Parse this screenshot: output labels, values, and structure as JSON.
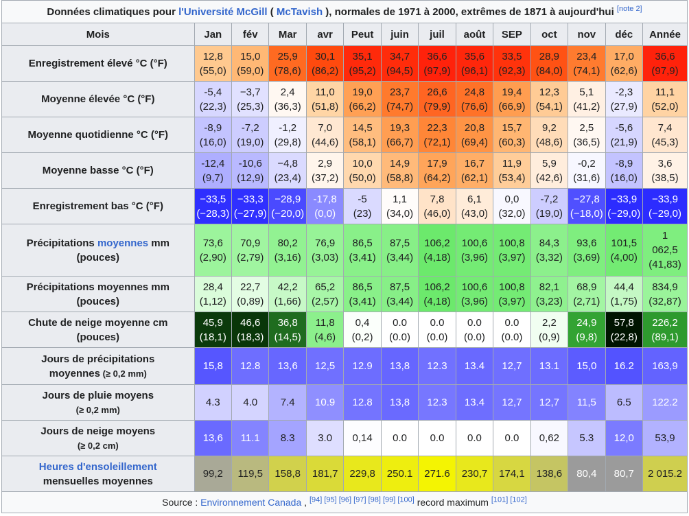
{
  "caption": {
    "prefix": "Données climatiques pour ",
    "link1": "l'Université McGill",
    "paren_open": " ( ",
    "link2": "McTavish",
    "suffix": " ), normales de 1971 à 2000, extrêmes de 1871 à aujourd'hui",
    "note": "[note 2]"
  },
  "header": {
    "mois": "Mois",
    "months": [
      "Jan",
      "fév",
      "Mar",
      "avr",
      "Peut",
      "juin",
      "juil",
      "août",
      "SEP",
      "oct",
      "nov",
      "déc",
      "Année"
    ]
  },
  "rows": [
    {
      "label": "Enregistrement élevé °C (°F)",
      "cells": [
        {
          "c": "12,8",
          "f": "(55,0)",
          "bg": "#ffc98f"
        },
        {
          "c": "15,0",
          "f": "(59,0)",
          "bg": "#ffb875"
        },
        {
          "c": "25,9",
          "f": "(78,6)",
          "bg": "#ff6a21"
        },
        {
          "c": "30,1",
          "f": "(86,2)",
          "bg": "#ff4a0e"
        },
        {
          "c": "35,1",
          "f": "(95,2)",
          "bg": "#ff2a0b"
        },
        {
          "c": "34,7",
          "f": "(94,5)",
          "bg": "#ff2c0b"
        },
        {
          "c": "36,6",
          "f": "(97,9)",
          "bg": "#ff220b"
        },
        {
          "c": "35,6",
          "f": "(96,1)",
          "bg": "#ff270b"
        },
        {
          "c": "33,5",
          "f": "(92,3)",
          "bg": "#ff330c"
        },
        {
          "c": "28,9",
          "f": "(84,0)",
          "bg": "#ff5214"
        },
        {
          "c": "23,4",
          "f": "(74,1)",
          "bg": "#ff7b2f"
        },
        {
          "c": "17,0",
          "f": "(62,6)",
          "bg": "#ffac64"
        },
        {
          "c": "36,6",
          "f": "(97,9)",
          "bg": "#ff220b"
        }
      ]
    },
    {
      "label": "Moyenne élevée °C (°F)",
      "cells": [
        {
          "c": "-5,4",
          "f": "(22,3)",
          "bg": "#d7d7ff"
        },
        {
          "c": "−3,7",
          "f": "(25,3)",
          "bg": "#e1e1ff"
        },
        {
          "c": "2,4",
          "f": "(36,3)",
          "bg": "#fff8f2"
        },
        {
          "c": "11,0",
          "f": "(51,8)",
          "bg": "#ffd5a5"
        },
        {
          "c": "19,0",
          "f": "(66,2)",
          "bg": "#ffa054"
        },
        {
          "c": "23,7",
          "f": "(74,7)",
          "bg": "#ff7a2d"
        },
        {
          "c": "26,6",
          "f": "(79,9)",
          "bg": "#ff6522"
        },
        {
          "c": "24,8",
          "f": "(76,6)",
          "bg": "#ff7228"
        },
        {
          "c": "19,4",
          "f": "(66,9)",
          "bg": "#ff9d50"
        },
        {
          "c": "12,3",
          "f": "(54,1)",
          "bg": "#ffcb95"
        },
        {
          "c": "5,1",
          "f": "(41,2)",
          "bg": "#fff0e3"
        },
        {
          "c": "-2,3",
          "f": "(27,9)",
          "bg": "#eaeaff"
        },
        {
          "c": "11,1",
          "f": "(52,0)",
          "bg": "#ffd3a3"
        }
      ]
    },
    {
      "label": "Moyenne quotidienne °C (°F)",
      "cells": [
        {
          "c": "-8,9",
          "f": "(16,0)",
          "bg": "#c3c3ff"
        },
        {
          "c": "-7,2",
          "f": "(19,0)",
          "bg": "#cdcdff"
        },
        {
          "c": "-1,2",
          "f": "(29,8)",
          "bg": "#f0f0ff"
        },
        {
          "c": "7,0",
          "f": "(44,6)",
          "bg": "#ffe8d2"
        },
        {
          "c": "14,5",
          "f": "(58,1)",
          "bg": "#ffbd7f"
        },
        {
          "c": "19,3",
          "f": "(66,7)",
          "bg": "#ff9e52"
        },
        {
          "c": "22,3",
          "f": "(72,1)",
          "bg": "#ff8637"
        },
        {
          "c": "20,8",
          "f": "(69,4)",
          "bg": "#ff9445"
        },
        {
          "c": "15,7",
          "f": "(60,3)",
          "bg": "#ffb672"
        },
        {
          "c": "9,2",
          "f": "(48,6)",
          "bg": "#ffdcb8"
        },
        {
          "c": "2,5",
          "f": "(36,5)",
          "bg": "#fff8f2"
        },
        {
          "c": "-5,6",
          "f": "(21,9)",
          "bg": "#d6d6ff"
        },
        {
          "c": "7,4",
          "f": "(45,3)",
          "bg": "#ffe6cf"
        }
      ]
    },
    {
      "label": "Moyenne basse °C (°F)",
      "cells": [
        {
          "c": "-12,4",
          "f": "(9,7)",
          "bg": "#aeaeff"
        },
        {
          "c": "-10,6",
          "f": "(12,9)",
          "bg": "#b9b9ff"
        },
        {
          "c": "−4,8",
          "f": "(23,4)",
          "bg": "#dadaff"
        },
        {
          "c": "2,9",
          "f": "(37,2)",
          "bg": "#fff5ec"
        },
        {
          "c": "10,0",
          "f": "(50,0)",
          "bg": "#ffd8ae"
        },
        {
          "c": "14,9",
          "f": "(58,8)",
          "bg": "#ffba7a"
        },
        {
          "c": "17,9",
          "f": "(64,2)",
          "bg": "#ffa55a"
        },
        {
          "c": "16,7",
          "f": "(62,1)",
          "bg": "#ffae67"
        },
        {
          "c": "11,9",
          "f": "(53,4)",
          "bg": "#ffcd99"
        },
        {
          "c": "5,9",
          "f": "(42,6)",
          "bg": "#ffeddc"
        },
        {
          "c": "-0,2",
          "f": "(31,6)",
          "bg": "#f7f7ff"
        },
        {
          "c": "-8,9",
          "f": "(16,0)",
          "bg": "#c3c3ff"
        },
        {
          "c": "3,6",
          "f": "(38,5)",
          "bg": "#fff2e6"
        }
      ]
    },
    {
      "label": "Enregistrement bas °C (°F)",
      "cells": [
        {
          "c": "−33,5",
          "f": "(−28,3)",
          "bg": "#2f2fff",
          "dark": true
        },
        {
          "c": "−33,3",
          "f": "(−27,9)",
          "bg": "#3030ff",
          "dark": true
        },
        {
          "c": "−28,9",
          "f": "(−20,0)",
          "bg": "#4a4aff",
          "dark": true
        },
        {
          "c": "-17,8",
          "f": "(0,0)",
          "bg": "#8a8aff",
          "dark": true
        },
        {
          "c": "-5",
          "f": "(23)",
          "bg": "#dadaff"
        },
        {
          "c": "1,1",
          "f": "(34,0)",
          "bg": "#fffcfa"
        },
        {
          "c": "7,8",
          "f": "(46,0)",
          "bg": "#ffe3c8"
        },
        {
          "c": "6,1",
          "f": "(43,0)",
          "bg": "#ffecd9"
        },
        {
          "c": "0,0",
          "f": "(32,0)",
          "bg": "#f8f8ff"
        },
        {
          "c": "-7,2",
          "f": "(19,0)",
          "bg": "#cdcdff"
        },
        {
          "c": "−27,8",
          "f": "(−18,0)",
          "bg": "#5050ff",
          "dark": true
        },
        {
          "c": "−33,9",
          "f": "(−29,0)",
          "bg": "#2c2cff",
          "dark": true
        },
        {
          "c": "−33,9",
          "f": "(−29,0)",
          "bg": "#2c2cff",
          "dark": true
        }
      ]
    }
  ],
  "precip_rows": [
    {
      "label_a": "Précipitations ",
      "label_link": "moyennes",
      "label_b": " mm",
      "label_c": "(pouces)",
      "cells": [
        {
          "v": "73,6",
          "i": "(2,90)",
          "bg": "#9cf49c"
        },
        {
          "v": "70,9",
          "i": "(2,79)",
          "bg": "#a0f5a0"
        },
        {
          "v": "80,2",
          "i": "(3,16)",
          "bg": "#92f292"
        },
        {
          "v": "76,9",
          "i": "(3,03)",
          "bg": "#97f397"
        },
        {
          "v": "86,5",
          "i": "(3,41)",
          "bg": "#89f089"
        },
        {
          "v": "87,5",
          "i": "(3,44)",
          "bg": "#87ef87"
        },
        {
          "v": "106,2",
          "i": "(4,18)",
          "bg": "#6ce96c"
        },
        {
          "v": "100,6",
          "i": "(3,96)",
          "bg": "#74eb74"
        },
        {
          "v": "100,8",
          "i": "(3,97)",
          "bg": "#74eb74"
        },
        {
          "v": "84,3",
          "i": "(3,32)",
          "bg": "#8cf08c"
        },
        {
          "v": "93,6",
          "i": "(3,69)",
          "bg": "#7fee7f"
        },
        {
          "v": "101,5",
          "i": "(4,00)",
          "bg": "#73eb73"
        },
        {
          "v": "1\n062,5",
          "i": "(41,83)",
          "bg": "#7fee7f",
          "multi": true
        }
      ]
    },
    {
      "label_a": "Précipitations moyennes mm",
      "label_c": "(pouces)",
      "cells": [
        {
          "v": "28,4",
          "i": "(1,12)",
          "bg": "#dafcda"
        },
        {
          "v": "22,7",
          "i": "(0,89)",
          "bg": "#e3fde3"
        },
        {
          "v": "42,2",
          "i": "(1,66)",
          "bg": "#c7f9c7"
        },
        {
          "v": "65,2",
          "i": "(2,57)",
          "bg": "#a8f6a8"
        },
        {
          "v": "86,5",
          "i": "(3,41)",
          "bg": "#89f089"
        },
        {
          "v": "87,5",
          "i": "(3,44)",
          "bg": "#87ef87"
        },
        {
          "v": "106,2",
          "i": "(4,18)",
          "bg": "#6ce96c"
        },
        {
          "v": "100,6",
          "i": "(3,96)",
          "bg": "#74eb74"
        },
        {
          "v": "100,8",
          "i": "(3,97)",
          "bg": "#74eb74"
        },
        {
          "v": "82,1",
          "i": "(3,23)",
          "bg": "#8ff18f"
        },
        {
          "v": "68,9",
          "i": "(2,71)",
          "bg": "#a3f5a3"
        },
        {
          "v": "44,4",
          "i": "(1,75)",
          "bg": "#c4f8c4"
        },
        {
          "v": "834,9",
          "i": "(32,87)",
          "bg": "#9af49a"
        }
      ]
    },
    {
      "label_a": "Chute de neige moyenne cm",
      "label_c": "(pouces)",
      "cells": [
        {
          "v": "45,9",
          "i": "(18,1)",
          "bg": "#0b3a0b",
          "dark": true
        },
        {
          "v": "46,6",
          "i": "(18,3)",
          "bg": "#093609",
          "dark": true
        },
        {
          "v": "36,8",
          "i": "(14,5)",
          "bg": "#1f6c1f",
          "dark": true
        },
        {
          "v": "11,8",
          "i": "(4,6)",
          "bg": "#8cf08c"
        },
        {
          "v": "0,4",
          "i": "(0,2)",
          "bg": "#fbfffb"
        },
        {
          "v": "0.0",
          "i": "(0.0)",
          "bg": "#ffffff"
        },
        {
          "v": "0.0",
          "i": "(0.0)",
          "bg": "#ffffff"
        },
        {
          "v": "0.0",
          "i": "(0.0)",
          "bg": "#ffffff"
        },
        {
          "v": "0.0",
          "i": "(0.0)",
          "bg": "#ffffff"
        },
        {
          "v": "2,2",
          "i": "(0,9)",
          "bg": "#f1fef1"
        },
        {
          "v": "24,9",
          "i": "(9,8)",
          "bg": "#33a333",
          "dark": true
        },
        {
          "v": "57,8",
          "i": "(22,8)",
          "bg": "#001400",
          "dark": true
        },
        {
          "v": "226,2",
          "i": "(89,1)",
          "bg": "#2e9a2e",
          "dark": true
        }
      ]
    }
  ],
  "day_rows": [
    {
      "label_a": "Jours de précipitations",
      "label_b": "moyennes",
      "label_small": " (≥ 0,2 mm)",
      "cells": [
        {
          "v": "15,8",
          "bg": "#5656ff",
          "dark": true
        },
        {
          "v": "12.8",
          "bg": "#6e6eff",
          "dark": true
        },
        {
          "v": "13,6",
          "bg": "#6767ff",
          "dark": true
        },
        {
          "v": "12,5",
          "bg": "#7070ff",
          "dark": true
        },
        {
          "v": "12.9",
          "bg": "#6d6dff",
          "dark": true
        },
        {
          "v": "13,8",
          "bg": "#6666ff",
          "dark": true
        },
        {
          "v": "12.3",
          "bg": "#7171ff",
          "dark": true
        },
        {
          "v": "13.4",
          "bg": "#6969ff",
          "dark": true
        },
        {
          "v": "12,7",
          "bg": "#6f6fff",
          "dark": true
        },
        {
          "v": "13.1",
          "bg": "#6c6cff",
          "dark": true
        },
        {
          "v": "15,0",
          "bg": "#5c5cff",
          "dark": true
        },
        {
          "v": "16.2",
          "bg": "#5353ff",
          "dark": true
        },
        {
          "v": "163,9",
          "bg": "#6363ff",
          "dark": true
        }
      ]
    },
    {
      "label_a": "Jours de pluie moyens",
      "label_small": "(≥ 0,2 mm)",
      "cells": [
        {
          "v": "4.3",
          "bg": "#d1d1ff"
        },
        {
          "v": "4.0",
          "bg": "#d4d4ff"
        },
        {
          "v": "7.4",
          "bg": "#b3b3ff"
        },
        {
          "v": "10.9",
          "bg": "#8f8fff",
          "dark": true
        },
        {
          "v": "12.8",
          "bg": "#7474ff",
          "dark": true
        },
        {
          "v": "13,8",
          "bg": "#6a6aff",
          "dark": true
        },
        {
          "v": "12.3",
          "bg": "#7777ff",
          "dark": true
        },
        {
          "v": "13.4",
          "bg": "#6e6eff",
          "dark": true
        },
        {
          "v": "12,7",
          "bg": "#7575ff",
          "dark": true
        },
        {
          "v": "12,7",
          "bg": "#7575ff",
          "dark": true
        },
        {
          "v": "11,5",
          "bg": "#8383ff",
          "dark": true
        },
        {
          "v": "6.5",
          "bg": "#bcbcff"
        },
        {
          "v": "122.2",
          "bg": "#9b9bff",
          "dark": true
        }
      ]
    },
    {
      "label_a": "Jours de neige moyens",
      "label_small": "(≥ 0,2 cm)",
      "cells": [
        {
          "v": "13,6",
          "bg": "#6a6aff",
          "dark": true
        },
        {
          "v": "11.1",
          "bg": "#8484ff",
          "dark": true
        },
        {
          "v": "8.3",
          "bg": "#a4a4ff"
        },
        {
          "v": "3.0",
          "bg": "#dedeff"
        },
        {
          "v": "0,14",
          "bg": "#fdfdff"
        },
        {
          "v": "0.0",
          "bg": "#ffffff"
        },
        {
          "v": "0.0",
          "bg": "#ffffff"
        },
        {
          "v": "0.0",
          "bg": "#ffffff"
        },
        {
          "v": "0.0",
          "bg": "#ffffff"
        },
        {
          "v": "0,62",
          "bg": "#f8f8ff"
        },
        {
          "v": "5.3",
          "bg": "#c6c6ff"
        },
        {
          "v": "12,0",
          "bg": "#7b7bff",
          "dark": true
        },
        {
          "v": "53,9",
          "bg": "#b2b2ff"
        }
      ]
    }
  ],
  "sun_row": {
    "label_link": "Heures d'ensoleillement",
    "label_b": "mensuelles moyennes",
    "cells": [
      {
        "v": "99,2",
        "bg": "#a9a997"
      },
      {
        "v": "119,5",
        "bg": "#b9b97f"
      },
      {
        "v": "158,8",
        "bg": "#d1d14c"
      },
      {
        "v": "181,7",
        "bg": "#dada38"
      },
      {
        "v": "229,8",
        "bg": "#e8e81c"
      },
      {
        "v": "250.1",
        "bg": "#eeee0f"
      },
      {
        "v": "271.6",
        "bg": "#f4f402"
      },
      {
        "v": "230,7",
        "bg": "#e8e81c"
      },
      {
        "v": "174,1",
        "bg": "#d7d741"
      },
      {
        "v": "138,6",
        "bg": "#c5c563"
      },
      {
        "v": "80,4",
        "bg": "#9b9b9b",
        "dark": true
      },
      {
        "v": "80,7",
        "bg": "#9b9b9b",
        "dark": true
      },
      {
        "v": "2 015.2",
        "bg": "#cfcf4f"
      }
    ]
  },
  "source": {
    "prefix": "Source : ",
    "link": "Environnement Canada",
    "comma": " , ",
    "refs": "[94] [95] [96] [97] [98] [99] [100]",
    "middle": " record maximum ",
    "refs2": "[101] [102]"
  }
}
